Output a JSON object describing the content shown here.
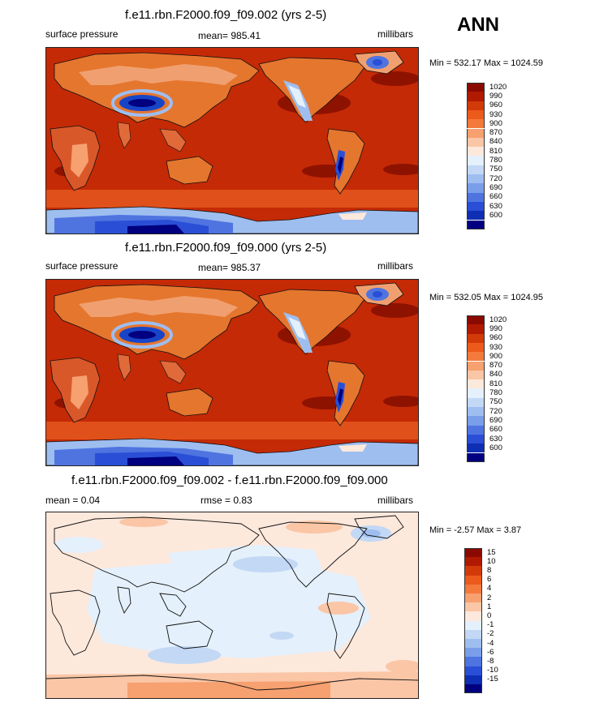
{
  "season": "ANN",
  "panels": [
    {
      "title": "f.e11.rbn.F2000.f09_f09.002 (yrs 2-5)",
      "left_label": "surface pressure",
      "center_label": "mean= 985.41",
      "right_label": "millibars",
      "minmax": "Min = 532.17 Max = 1024.59"
    },
    {
      "title": "f.e11.rbn.F2000.f09_f09.000 (yrs 2-5)",
      "left_label": "surface pressure",
      "center_label": "mean= 985.37",
      "right_label": "millibars",
      "minmax": "Min = 532.05 Max = 1024.95"
    },
    {
      "title": "f.e11.rbn.F2000.f09_f09.002 - f.e11.rbn.F2000.f09_f09.000",
      "left_label": "mean =   0.04",
      "center_label": "rmse =   0.83",
      "right_label": "millibars",
      "minmax": "Min =  -2.57 Max =   3.87"
    }
  ],
  "pressure_colorbar": {
    "levels": [
      "1020",
      "990",
      "960",
      "930",
      "900",
      "870",
      "840",
      "810",
      "780",
      "750",
      "720",
      "690",
      "660",
      "630",
      "600"
    ],
    "colors": [
      "#8b0a00",
      "#b01a00",
      "#d33a0a",
      "#ec5a1c",
      "#f47a3c",
      "#f7a070",
      "#fac6a6",
      "#fde8dc",
      "#e4f0fb",
      "#c2d8f5",
      "#9ebef0",
      "#7a9eea",
      "#4f74e0",
      "#2a4fd6",
      "#0e2fb4",
      "#000080"
    ]
  },
  "diff_colorbar": {
    "levels": [
      "15",
      "10",
      "8",
      "6",
      "4",
      "2",
      "1",
      "0",
      "-1",
      "-2",
      "-4",
      "-6",
      "-8",
      "-10",
      "-15"
    ],
    "colors": [
      "#8b0a00",
      "#b01a00",
      "#d33a0a",
      "#ec5a1c",
      "#f47a3c",
      "#f7a070",
      "#fac6a6",
      "#fde8dc",
      "#e4f0fb",
      "#c2d8f5",
      "#9ebef0",
      "#7a9eea",
      "#4f74e0",
      "#2a4fd6",
      "#0e2fb4",
      "#000080"
    ]
  }
}
